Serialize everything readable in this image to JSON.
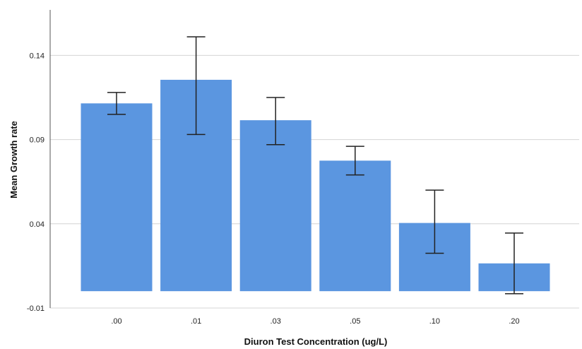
{
  "chart_data": {
    "type": "bar",
    "categories": [
      ".00",
      ".01",
      ".03",
      ".05",
      ".10",
      ".20"
    ],
    "values": [
      0.1115,
      0.1255,
      0.1015,
      0.0775,
      0.0405,
      0.0165
    ],
    "error_low": [
      0.105,
      0.093,
      0.087,
      0.069,
      0.0225,
      -0.0015
    ],
    "error_high": [
      0.118,
      0.151,
      0.115,
      0.086,
      0.06,
      0.0345
    ],
    "title": "",
    "xlabel": "Diuron Test Concentration (ug/L)",
    "ylabel": "Mean Growth rate",
    "yticks": [
      -0.01,
      0.04,
      0.09,
      0.14
    ],
    "ytick_labels": [
      "-0.01",
      "0.04",
      "0.09",
      "0.14"
    ],
    "ylim": [
      -0.01,
      0.167
    ],
    "grid": "horizontal",
    "legend": "none",
    "bar_color": "#5b96e0",
    "error_bar_color": "#222222"
  }
}
